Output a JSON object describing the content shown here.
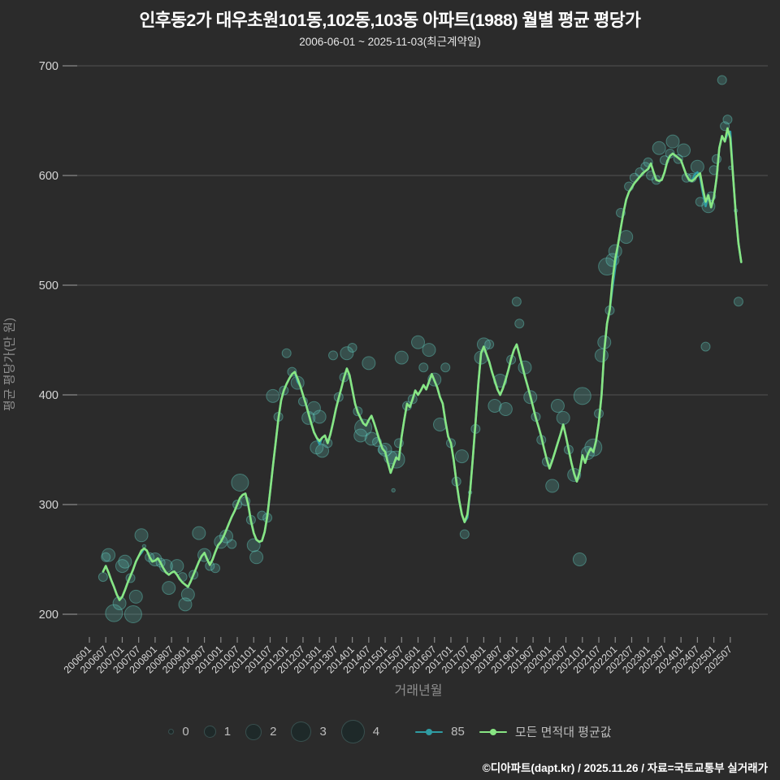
{
  "title": "인후동2가 대우초원101동,102동,103동 아파트(1988) 월별 평균 평당가",
  "subtitle": "2006-06-01 ~ 2025-11-03(최근계약일)",
  "footer": "©디아파트(dapt.kr) / 2025.11.26 / 자료=국토교통부 실거래가",
  "colors": {
    "background": "#2b2b2b",
    "grid": "#535353",
    "tick": "#8a8a8a",
    "tick_label": "#d6d6d6",
    "axis_title": "#8f8f8f",
    "series_85": "#2f9ca3",
    "series_avg": "#88e583",
    "bubble_fill": "rgba(100,210,195,0.22)",
    "bubble_stroke": "rgba(100,210,195,0.42)"
  },
  "legend": {
    "size_labels": [
      "0",
      "1",
      "2",
      "3",
      "4"
    ],
    "line_labels": [
      "85",
      "모든 면적대 평균값"
    ]
  },
  "chart_data": {
    "type": "scatter",
    "title": "인후동2가 대우초원101동,102동,103동 아파트(1988) 월별 평균 평당가",
    "xlabel": "거래년월",
    "ylabel": "평균 평당가(만 원)",
    "ylim": [
      155,
      720
    ],
    "y_ticks": [
      200,
      300,
      400,
      500,
      600,
      700
    ],
    "x_axis_start": "200601",
    "x_tick_labels": [
      "200601",
      "200607",
      "200701",
      "200707",
      "200801",
      "200807",
      "200901",
      "200907",
      "201001",
      "201007",
      "201101",
      "201107",
      "201201",
      "201207",
      "201301",
      "201307",
      "201401",
      "201407",
      "201501",
      "201507",
      "201601",
      "201607",
      "201701",
      "201707",
      "201801",
      "201807",
      "201901",
      "201907",
      "202001",
      "202007",
      "202101",
      "202107",
      "202201",
      "202207",
      "202301",
      "202307",
      "202401",
      "202407",
      "202501",
      "202507"
    ],
    "series_start": "200606",
    "series": [
      {
        "name": "모든 면적대 평균값",
        "type": "line",
        "values": [
          239,
          244,
          238,
          231,
          225,
          218,
          213,
          216,
          222,
          229,
          235,
          241,
          248,
          253,
          258,
          260,
          258,
          252,
          248,
          249,
          251,
          247,
          242,
          238,
          236,
          238,
          239,
          236,
          232,
          229,
          227,
          225,
          230,
          236,
          242,
          248,
          253,
          256,
          250,
          245,
          250,
          257,
          263,
          266,
          271,
          277,
          283,
          289,
          294,
          300,
          306,
          309,
          310,
          300,
          285,
          274,
          268,
          266,
          267,
          275,
          290,
          312,
          335,
          356,
          378,
          395,
          404,
          410,
          415,
          419,
          421,
          415,
          408,
          400,
          392,
          383,
          374,
          366,
          361,
          358,
          361,
          363,
          356,
          364,
          375,
          387,
          397,
          406,
          416,
          424,
          418,
          405,
          392,
          384,
          379,
          374,
          372,
          377,
          381,
          374,
          366,
          358,
          351,
          348,
          338,
          329,
          336,
          343,
          341,
          362,
          378,
          392,
          389,
          396,
          404,
          400,
          404,
          409,
          405,
          412,
          419,
          413,
          407,
          398,
          392,
          376,
          362,
          356,
          341,
          321,
          304,
          291,
          284,
          291,
          312,
          342,
          375,
          410,
          438,
          444,
          437,
          430,
          421,
          413,
          405,
          400,
          406,
          414,
          423,
          433,
          441,
          446,
          437,
          427,
          417,
          408,
          399,
          389,
          379,
          371,
          362,
          351,
          341,
          333,
          340,
          348,
          356,
          364,
          373,
          362,
          350,
          338,
          328,
          321,
          330,
          345,
          338,
          346,
          351,
          348,
          358,
          375,
          400,
          440,
          465,
          478,
          505,
          524,
          537,
          552,
          566,
          578,
          585,
          589,
          593,
          596,
          599,
          602,
          604,
          606,
          611,
          603,
          596,
          595,
          596,
          603,
          613,
          618,
          620,
          618,
          616,
          614,
          607,
          600,
          596,
          595,
          597,
          600,
          602,
          588,
          576,
          582,
          571,
          580,
          598,
          625,
          636,
          631,
          643,
          634,
          600,
          565,
          538,
          521
        ]
      },
      {
        "name": "85",
        "type": "line",
        "same_as": "모든 면적대 평균값",
        "overrides": {
          "200708": 256,
          "201205": 412,
          "201301": 355,
          "201707": 288,
          "202112": 498,
          "202201": 516,
          "202406": 601,
          "202407": 603,
          "202408": 598,
          "202409": 584,
          "202410": 572,
          "202506": 638,
          "202507": 640
        }
      }
    ],
    "bubbles": {
      "size_levels": [
        0,
        1,
        2,
        3,
        4
      ],
      "points": [
        [
          "200606",
          234,
          1
        ],
        [
          "200607",
          252,
          1
        ],
        [
          "200608",
          254,
          2
        ],
        [
          "200610",
          201,
          3
        ],
        [
          "200612",
          210,
          2
        ],
        [
          "200701",
          244,
          2
        ],
        [
          "200702",
          248,
          2
        ],
        [
          "200704",
          233,
          1
        ],
        [
          "200705",
          200,
          3
        ],
        [
          "200706",
          216,
          2
        ],
        [
          "200708",
          272,
          2
        ],
        [
          "200709",
          262,
          0
        ],
        [
          "200711",
          252,
          1
        ],
        [
          "200801",
          250,
          2
        ],
        [
          "200803",
          247,
          1
        ],
        [
          "200805",
          244,
          2
        ],
        [
          "200806",
          224,
          2
        ],
        [
          "200809",
          244,
          2
        ],
        [
          "200811",
          234,
          1
        ],
        [
          "200812",
          209,
          2
        ],
        [
          "200901",
          218,
          2
        ],
        [
          "200903",
          236,
          1
        ],
        [
          "200905",
          274,
          2
        ],
        [
          "200907",
          254,
          2
        ],
        [
          "200909",
          244,
          1
        ],
        [
          "200911",
          242,
          1
        ],
        [
          "201001",
          266,
          2
        ],
        [
          "201003",
          271,
          2
        ],
        [
          "201005",
          264,
          1
        ],
        [
          "201007",
          300,
          1
        ],
        [
          "201008",
          320,
          3
        ],
        [
          "201010",
          303,
          1
        ],
        [
          "201012",
          286,
          1
        ],
        [
          "201101",
          263,
          2
        ],
        [
          "201102",
          252,
          2
        ],
        [
          "201104",
          290,
          1
        ],
        [
          "201106",
          288,
          1
        ],
        [
          "201108",
          399,
          2
        ],
        [
          "201110",
          380,
          1
        ],
        [
          "201112",
          404,
          1
        ],
        [
          "201201",
          438,
          1
        ],
        [
          "201203",
          421,
          1
        ],
        [
          "201205",
          411,
          2
        ],
        [
          "201207",
          394,
          1
        ],
        [
          "201209",
          379,
          2
        ],
        [
          "201211",
          388,
          2
        ],
        [
          "201212",
          352,
          2
        ],
        [
          "201301",
          380,
          2
        ],
        [
          "201302",
          349,
          2
        ],
        [
          "201304",
          356,
          1
        ],
        [
          "201306",
          436,
          1
        ],
        [
          "201308",
          398,
          1
        ],
        [
          "201310",
          416,
          1
        ],
        [
          "201311",
          438,
          2
        ],
        [
          "201401",
          443,
          1
        ],
        [
          "201403",
          385,
          1
        ],
        [
          "201404",
          363,
          2
        ],
        [
          "201405",
          370,
          3
        ],
        [
          "201407",
          429,
          2
        ],
        [
          "201408",
          360,
          2
        ],
        [
          "201410",
          357,
          1
        ],
        [
          "201412",
          350,
          1
        ],
        [
          "201501",
          350,
          2
        ],
        [
          "201503",
          343,
          2
        ],
        [
          "201504",
          313,
          0
        ],
        [
          "201505",
          341,
          3
        ],
        [
          "201506",
          356,
          1
        ],
        [
          "201507",
          434,
          2
        ],
        [
          "201509",
          390,
          1
        ],
        [
          "201511",
          396,
          1
        ],
        [
          "201601",
          448,
          2
        ],
        [
          "201603",
          425,
          1
        ],
        [
          "201605",
          441,
          2
        ],
        [
          "201607",
          414,
          2
        ],
        [
          "201609",
          373,
          2
        ],
        [
          "201611",
          425,
          1
        ],
        [
          "201701",
          356,
          1
        ],
        [
          "201703",
          321,
          1
        ],
        [
          "201705",
          344,
          2
        ],
        [
          "201706",
          273,
          1
        ],
        [
          "201708",
          311,
          0
        ],
        [
          "201710",
          369,
          1
        ],
        [
          "201712",
          434,
          2
        ],
        [
          "201801",
          446,
          2
        ],
        [
          "201803",
          446,
          1
        ],
        [
          "201805",
          390,
          2
        ],
        [
          "201807",
          413,
          2
        ],
        [
          "201809",
          387,
          2
        ],
        [
          "201811",
          432,
          1
        ],
        [
          "201901",
          485,
          1
        ],
        [
          "201902",
          465,
          1
        ],
        [
          "201904",
          425,
          2
        ],
        [
          "201906",
          398,
          2
        ],
        [
          "201908",
          380,
          1
        ],
        [
          "201910",
          359,
          1
        ],
        [
          "201912",
          339,
          1
        ],
        [
          "202002",
          317,
          2
        ],
        [
          "202004",
          390,
          2
        ],
        [
          "202006",
          379,
          2
        ],
        [
          "202008",
          350,
          1
        ],
        [
          "202010",
          327,
          2
        ],
        [
          "202012",
          250,
          2
        ],
        [
          "202101",
          399,
          3
        ],
        [
          "202103",
          347,
          2
        ],
        [
          "202105",
          352,
          3
        ],
        [
          "202107",
          383,
          1
        ],
        [
          "202108",
          436,
          2
        ],
        [
          "202109",
          448,
          2
        ],
        [
          "202110",
          517,
          3
        ],
        [
          "202111",
          477,
          1
        ],
        [
          "202112",
          523,
          2
        ],
        [
          "202201",
          531,
          2
        ],
        [
          "202203",
          566,
          1
        ],
        [
          "202205",
          544,
          2
        ],
        [
          "202206",
          590,
          1
        ],
        [
          "202208",
          598,
          1
        ],
        [
          "202210",
          603,
          1
        ],
        [
          "202212",
          608,
          1
        ],
        [
          "202301",
          612,
          1
        ],
        [
          "202302",
          600,
          1
        ],
        [
          "202304",
          596,
          1
        ],
        [
          "202305",
          625,
          2
        ],
        [
          "202307",
          614,
          1
        ],
        [
          "202309",
          620,
          1
        ],
        [
          "202310",
          631,
          2
        ],
        [
          "202312",
          615,
          1
        ],
        [
          "202402",
          623,
          2
        ],
        [
          "202403",
          598,
          1
        ],
        [
          "202405",
          598,
          1
        ],
        [
          "202407",
          608,
          2
        ],
        [
          "202408",
          576,
          1
        ],
        [
          "202410",
          444,
          1
        ],
        [
          "202411",
          572,
          2
        ],
        [
          "202412",
          581,
          1
        ],
        [
          "202501",
          605,
          1
        ],
        [
          "202502",
          615,
          1
        ],
        [
          "202504",
          687,
          1
        ],
        [
          "202505",
          645,
          1
        ],
        [
          "202506",
          651,
          1
        ],
        [
          "202507",
          607,
          0
        ],
        [
          "202509",
          568,
          0
        ],
        [
          "202510",
          485,
          1
        ]
      ]
    }
  }
}
